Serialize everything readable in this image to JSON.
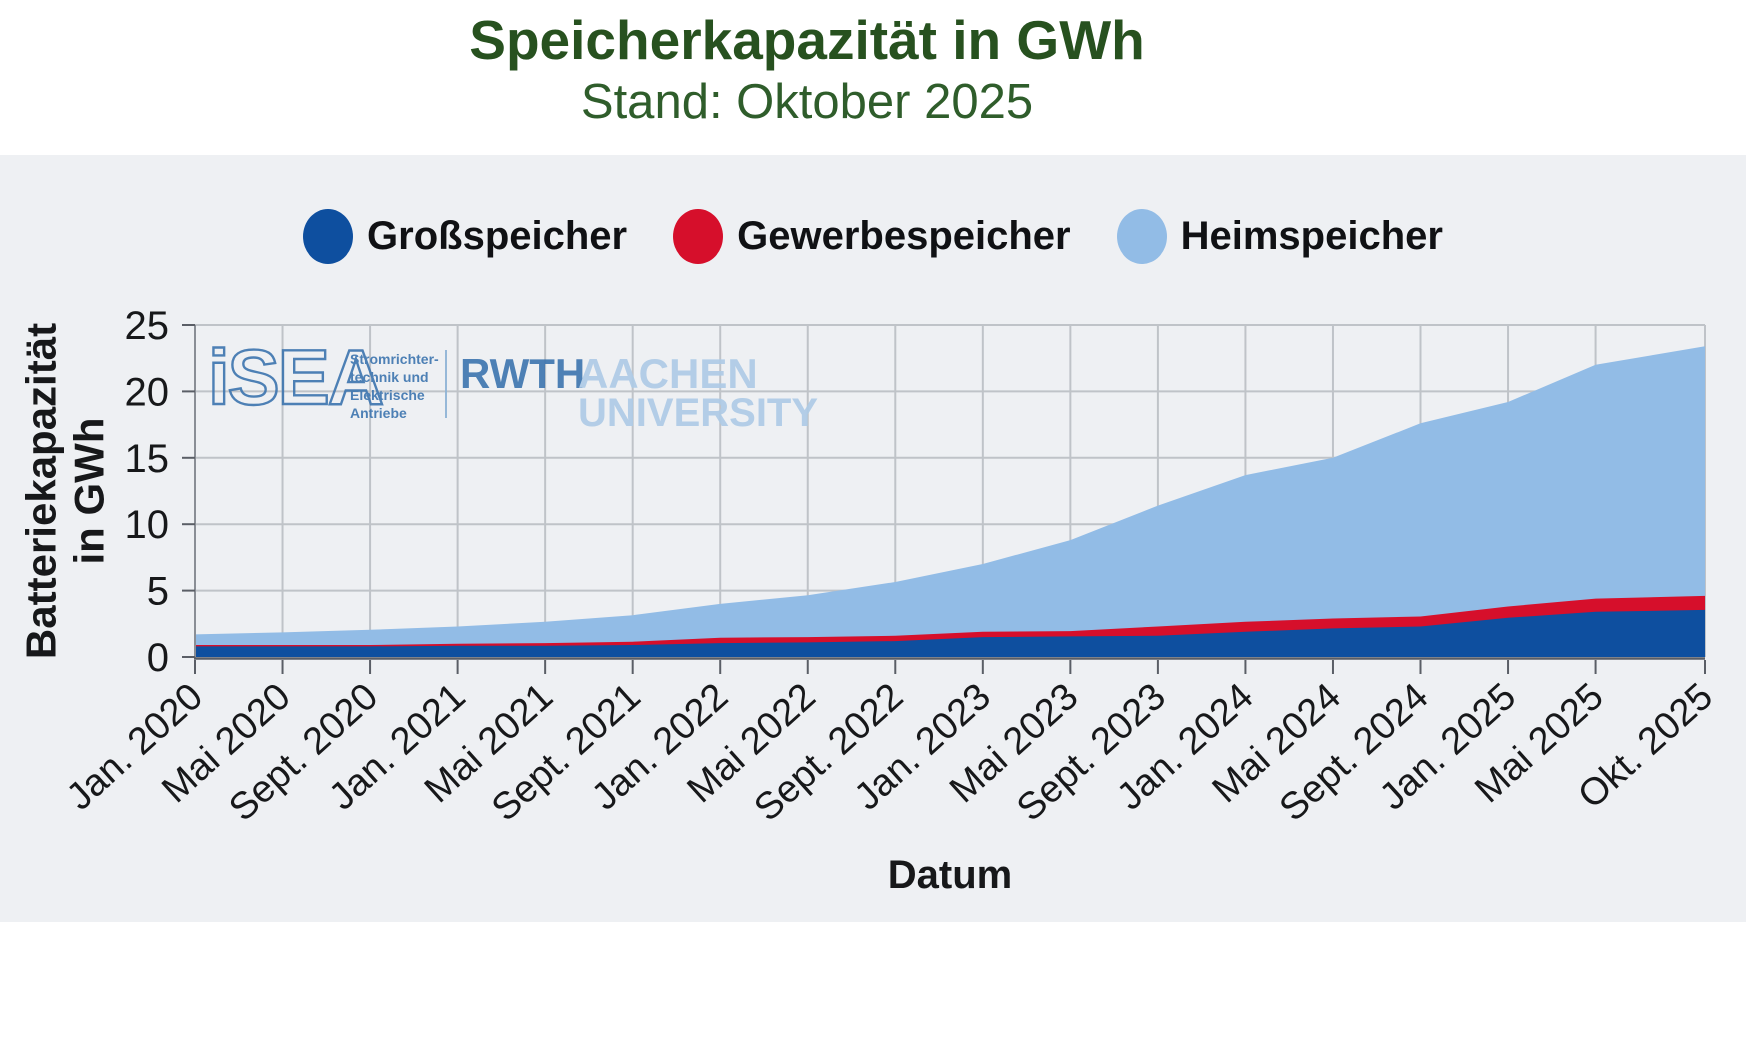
{
  "page": {
    "title": "Speicherkapazität in GWh",
    "subtitle": "Stand: Oktober 2025"
  },
  "legend": {
    "items": [
      {
        "label": "Großspeicher",
        "color": "#0E4F9F"
      },
      {
        "label": "Gewerbespeicher",
        "color": "#D60F2B"
      },
      {
        "label": "Heimspeicher",
        "color": "#92BCE6"
      }
    ]
  },
  "watermark": {
    "isea_wordmark": "iSEA",
    "isea_lines": [
      "Stromrichter-",
      "technik und",
      "Elektrische",
      "Antriebe"
    ],
    "rwth": "RWTH",
    "aachen": "AACHEN",
    "university": "UNIVERSITY",
    "color_strong": "#4077B0",
    "color_light": "#AECBE6"
  },
  "colors": {
    "panel_bg": "#EEF0F3",
    "grid": "#BFC3C8",
    "axis": "#5A5E66",
    "tick_text": "#17181A",
    "title_green": "#27511F",
    "subtitle_green": "#2F5D2B"
  },
  "chart_data": {
    "type": "area",
    "stacked": true,
    "title": "Speicherkapazität in GWh",
    "subtitle": "Stand: Oktober 2025",
    "xlabel": "Datum",
    "ylabel": "Batteriekapazität in GWh",
    "ylabel_lines": [
      "Batteriekapazität",
      "in GWh"
    ],
    "unit": "GWh",
    "ylim": [
      0,
      25
    ],
    "y_ticks": [
      0,
      5,
      10,
      15,
      20,
      25
    ],
    "grid": true,
    "legend_position": "top",
    "x_tick_labels": [
      "Jan. 2020",
      "Mai 2020",
      "Sept. 2020",
      "Jan. 2021",
      "Mai 2021",
      "Sept. 2021",
      "Jan. 2022",
      "Mai 2022",
      "Sept. 2022",
      "Jan. 2023",
      "Mai 2023",
      "Sept. 2023",
      "Jan. 2024",
      "Mai 2024",
      "Sept. 2024",
      "Jan. 2025",
      "Mai 2025",
      "Okt. 2025"
    ],
    "x_months_from_start": [
      0,
      4,
      8,
      12,
      16,
      20,
      24,
      28,
      32,
      36,
      40,
      44,
      48,
      52,
      56,
      60,
      64,
      69
    ],
    "series": [
      {
        "name": "Großspeicher",
        "color": "#0E4F9F",
        "values": [
          0.8,
          0.8,
          0.8,
          0.85,
          0.85,
          0.9,
          1.05,
          1.1,
          1.2,
          1.5,
          1.55,
          1.6,
          1.9,
          2.15,
          2.3,
          2.95,
          3.4,
          3.55
        ]
      },
      {
        "name": "Gewerbespeicher",
        "color": "#D60F2B",
        "values": [
          0.1,
          0.1,
          0.1,
          0.15,
          0.2,
          0.25,
          0.4,
          0.4,
          0.4,
          0.4,
          0.4,
          0.7,
          0.75,
          0.75,
          0.75,
          0.85,
          1.0,
          1.05
        ]
      },
      {
        "name": "Heimspeicher",
        "color": "#92BCE6",
        "values": [
          0.8,
          0.95,
          1.15,
          1.3,
          1.6,
          2.0,
          2.55,
          3.15,
          4.05,
          5.1,
          6.85,
          9.1,
          11.05,
          12.1,
          14.55,
          15.4,
          17.6,
          18.8
        ]
      }
    ],
    "totals": [
      1.7,
      1.85,
      2.05,
      2.3,
      2.65,
      3.15,
      4.0,
      4.65,
      5.65,
      7.0,
      8.8,
      11.4,
      13.7,
      15.0,
      17.6,
      19.2,
      22.0,
      23.4
    ]
  }
}
